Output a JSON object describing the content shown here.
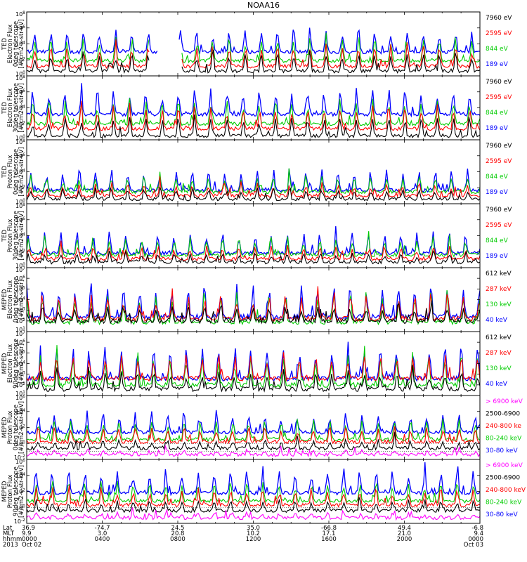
{
  "chart_data": {
    "type": "line",
    "title": "NOAA16",
    "colors": {
      "blue": "#0000ff",
      "red": "#ff0000",
      "green": "#00cc00",
      "black": "#000000",
      "magenta": "#ff00ff"
    },
    "panels": [
      {
        "id": "ted-e-0",
        "ylabel": [
          "TED",
          "Electron Flux",
          "0deg telescope",
          "[#/cm2-s-str-eV]"
        ],
        "yticks": [
          "10^0",
          "10^2",
          "10^4",
          "10^6",
          "10^8"
        ],
        "ylim_exp": [
          0,
          8
        ],
        "log": true,
        "legend": [
          {
            "text": "7960 eV",
            "color": "black"
          },
          {
            "text": "2595 eV",
            "color": "red"
          },
          {
            "text": "844 eV",
            "color": "green"
          },
          {
            "text": "189 eV",
            "color": "blue"
          }
        ],
        "series": [
          {
            "color": "blue",
            "base": 3.0,
            "amp": 3.3
          },
          {
            "color": "green",
            "base": 1.9,
            "amp": 3.2
          },
          {
            "color": "red",
            "base": 1.2,
            "amp": 2.9
          },
          {
            "color": "black",
            "base": 0.6,
            "amp": 2.5
          }
        ],
        "gap": [
          0.27,
          0.34
        ]
      },
      {
        "id": "ted-e-30",
        "ylabel": [
          "TED",
          "Electron Flux",
          "30deg telescope",
          "[#/cm2-s-str-eV]"
        ],
        "yticks": [
          "10^0",
          "10^2",
          "10^4",
          "10^6",
          "10^8"
        ],
        "ylim_exp": [
          0,
          8
        ],
        "log": true,
        "legend": [
          {
            "text": "7960 eV",
            "color": "black"
          },
          {
            "text": "2595 eV",
            "color": "red"
          },
          {
            "text": "844 eV",
            "color": "green"
          },
          {
            "text": "189 eV",
            "color": "blue"
          }
        ],
        "series": [
          {
            "color": "blue",
            "base": 3.2,
            "amp": 3.4
          },
          {
            "color": "green",
            "base": 2.0,
            "amp": 3.2
          },
          {
            "color": "red",
            "base": 1.4,
            "amp": 2.9
          },
          {
            "color": "black",
            "base": 0.5,
            "amp": 2.4
          }
        ]
      },
      {
        "id": "ted-p-0",
        "ylabel": [
          "TED",
          "Proton Flux",
          "0deg telescope",
          "[#/cm2-s-str-eV]"
        ],
        "yticks": [
          "10^0",
          "10^2",
          "10^4",
          "10^6",
          "10^8"
        ],
        "ylim_exp": [
          0,
          8
        ],
        "log": true,
        "legend": [
          {
            "text": "7960 eV",
            "color": "black"
          },
          {
            "text": "2595 eV",
            "color": "red"
          },
          {
            "text": "844 eV",
            "color": "green"
          },
          {
            "text": "189 eV",
            "color": "blue"
          }
        ],
        "series": [
          {
            "color": "blue",
            "base": 1.7,
            "amp": 2.6
          },
          {
            "color": "green",
            "base": 1.5,
            "amp": 2.2
          },
          {
            "color": "red",
            "base": 1.0,
            "amp": 1.6
          },
          {
            "color": "black",
            "base": 0.6,
            "amp": 1.4
          }
        ]
      },
      {
        "id": "ted-p-30",
        "ylabel": [
          "TED",
          "Proton Flux",
          "30deg telescope",
          "[#/cm2-s-str-eV]"
        ],
        "yticks": [
          "10^0",
          "10^2",
          "10^4",
          "10^6",
          "10^8"
        ],
        "ylim_exp": [
          0,
          8
        ],
        "log": true,
        "legend": [
          {
            "text": "7960 eV",
            "color": "black"
          },
          {
            "text": "2595 eV",
            "color": "red"
          },
          {
            "text": "844 eV",
            "color": "green"
          },
          {
            "text": "189 eV",
            "color": "blue"
          }
        ],
        "series": [
          {
            "color": "blue",
            "base": 1.8,
            "amp": 2.8
          },
          {
            "color": "green",
            "base": 1.6,
            "amp": 2.3
          },
          {
            "color": "red",
            "base": 1.1,
            "amp": 1.7
          },
          {
            "color": "black",
            "base": 0.7,
            "amp": 1.3
          }
        ]
      },
      {
        "id": "meped-e-0",
        "ylabel": [
          "MEPED",
          "Electron Flux",
          "0deg telescope",
          "[#/cm2-s-str]"
        ],
        "yticks": [
          "10^1",
          "10^2",
          "10^3",
          "10^4",
          "10^5",
          "10^6",
          "10^7"
        ],
        "ylim_exp": [
          1,
          7
        ],
        "log": true,
        "legend": [
          {
            "text": "612 keV",
            "color": "black"
          },
          {
            "text": "287 keV",
            "color": "red"
          },
          {
            "text": "130 keV",
            "color": "green"
          },
          {
            "text": "40 keV",
            "color": "blue"
          }
        ],
        "series": [
          {
            "color": "blue",
            "base": 2.4,
            "amp": 3.4
          },
          {
            "color": "green",
            "base": 1.9,
            "amp": 3.0
          },
          {
            "color": "red",
            "base": 2.2,
            "amp": 2.6
          },
          {
            "color": "black",
            "base": 2.0,
            "amp": 1.4
          }
        ]
      },
      {
        "id": "meped-e-90",
        "ylabel": [
          "MEPED",
          "Electron Flux",
          "90deg telescope",
          "[#/cm2-s-str]"
        ],
        "yticks": [
          "10^1",
          "10^2",
          "10^3",
          "10^4",
          "10^5",
          "10^6",
          "10^7"
        ],
        "ylim_exp": [
          1,
          7
        ],
        "log": true,
        "legend": [
          {
            "text": "612 keV",
            "color": "black"
          },
          {
            "text": "287 keV",
            "color": "red"
          },
          {
            "text": "130 keV",
            "color": "green"
          },
          {
            "text": "40 keV",
            "color": "blue"
          }
        ],
        "series": [
          {
            "color": "blue",
            "base": 2.6,
            "amp": 3.4
          },
          {
            "color": "green",
            "base": 2.0,
            "amp": 3.1
          },
          {
            "color": "red",
            "base": 2.6,
            "amp": 2.4
          },
          {
            "color": "black",
            "base": 1.6,
            "amp": 1.8
          }
        ]
      },
      {
        "id": "meped-p-0",
        "ylabel": [
          "MEPED",
          "Proton Flux",
          "0deg telescope",
          "[#/cm2-s-str-keV]"
        ],
        "yticks": [
          "10^-2",
          "10^0",
          "10^2",
          "10^4",
          "10^6"
        ],
        "ylim_exp": [
          -2,
          6
        ],
        "log": true,
        "legend": [
          {
            "text": "> 6900 keV",
            "color": "magenta"
          },
          {
            "text": "2500-6900",
            "color": "black"
          },
          {
            "text": "240-800 ke",
            "color": "red"
          },
          {
            "text": "80-240 keV",
            "color": "green"
          },
          {
            "text": "30-80 keV",
            "color": "blue"
          }
        ],
        "series": [
          {
            "color": "blue",
            "base": 1.4,
            "amp": 2.6
          },
          {
            "color": "green",
            "base": 0.5,
            "amp": 2.8
          },
          {
            "color": "red",
            "base": 0.2,
            "amp": 2.2
          },
          {
            "color": "black",
            "base": -0.6,
            "amp": 1.2
          },
          {
            "color": "magenta",
            "base": -1.4,
            "amp": 0.5
          }
        ],
        "dotted": [
          0.0,
          -1.0
        ]
      },
      {
        "id": "meped-p-90",
        "ylabel": [
          "MEPED",
          "Proton Flux",
          "90deg telescope",
          "[#/cm2-s-str-keV]"
        ],
        "yticks": [
          "10^-2",
          "10^0",
          "10^2",
          "10^4",
          "10^6"
        ],
        "ylim_exp": [
          -2,
          6
        ],
        "log": true,
        "legend": [
          {
            "text": "> 6900 keV",
            "color": "magenta"
          },
          {
            "text": "2500-6900",
            "color": "black"
          },
          {
            "text": "240-800 keV",
            "color": "red"
          },
          {
            "text": "80-240 keV",
            "color": "green"
          },
          {
            "text": "30-80 keV",
            "color": "blue"
          }
        ],
        "series": [
          {
            "color": "blue",
            "base": 1.8,
            "amp": 3.2
          },
          {
            "color": "green",
            "base": 0.8,
            "amp": 2.8
          },
          {
            "color": "red",
            "base": 0.3,
            "amp": 2.2
          },
          {
            "color": "black",
            "base": -0.4,
            "amp": 1.4
          },
          {
            "color": "magenta",
            "base": -1.3,
            "amp": 0.6
          }
        ],
        "dotted": [
          0.0
        ]
      }
    ],
    "x_axis": {
      "rows": [
        {
          "label": "Lat",
          "values": [
            "36.9",
            "-74.7",
            "24.5",
            "35.0",
            "-66.8",
            "49.4",
            "-6.8"
          ]
        },
        {
          "label": "MLT",
          "values": [
            "9.9",
            "3.0",
            "20.8",
            "10.2",
            "17.1",
            "21.0",
            "9.4"
          ]
        },
        {
          "label": "hhmm",
          "values": [
            "0000",
            "0400",
            "0800",
            "1200",
            "1600",
            "2000",
            "0000"
          ]
        },
        {
          "label": "2013",
          "values": [
            "Oct 02",
            "",
            "",
            "",
            "",
            "",
            "Oct 03"
          ]
        }
      ],
      "xlim_hours": [
        0,
        24
      ],
      "tick_hours": [
        0,
        4,
        8,
        12,
        16,
        20,
        24
      ]
    }
  }
}
